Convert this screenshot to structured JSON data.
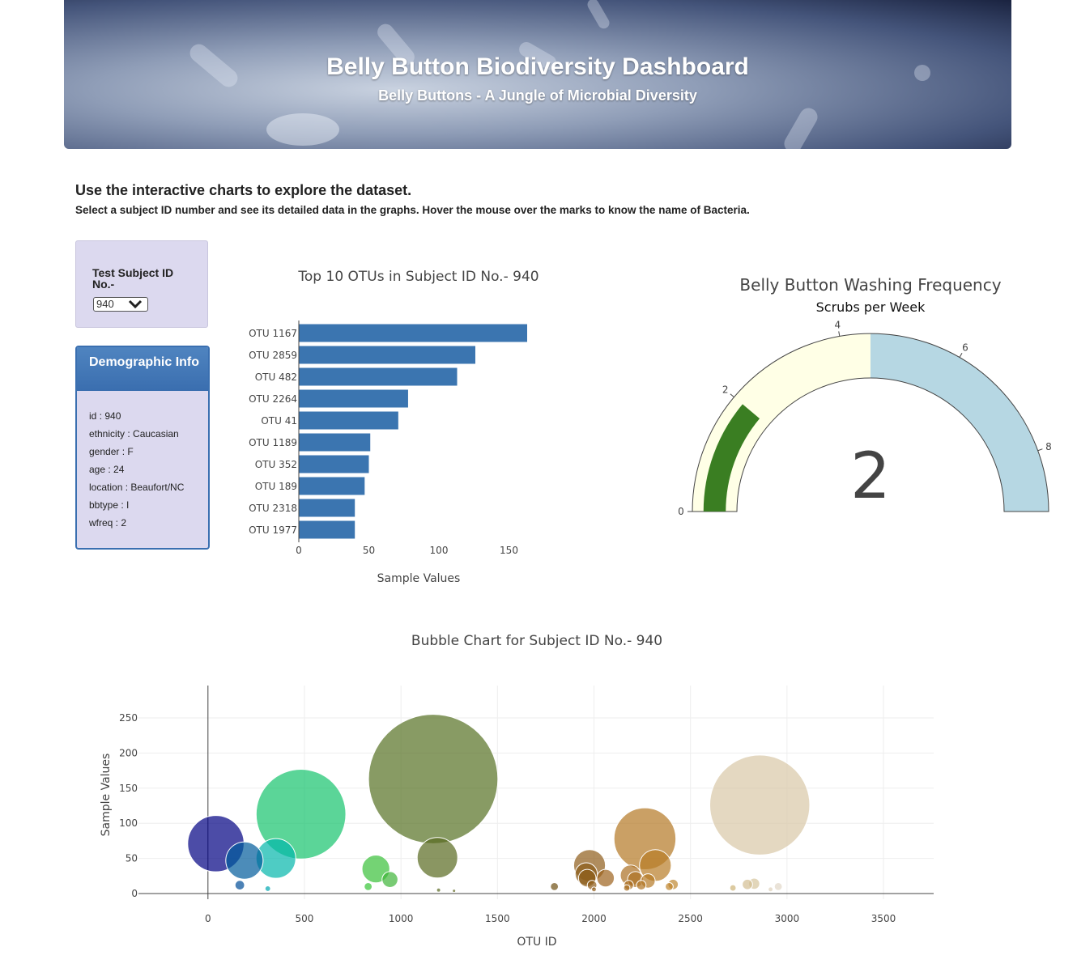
{
  "header": {
    "title": "Belly Button Biodiversity Dashboard",
    "subtitle": "Belly Buttons - A Jungle of Microbial Diversity"
  },
  "intro": {
    "heading": "Use the interactive charts to explore the dataset.",
    "text": "Select a subject ID number and see its detailed data in the graphs. Hover the mouse over the marks to know the name of Bacteria."
  },
  "selector": {
    "label": "Test Subject ID No.-",
    "value": "940"
  },
  "demographics": {
    "title": "Demographic Info",
    "items": [
      "id : 940",
      "ethnicity : Caucasian",
      "gender : F",
      "age : 24",
      "location : Beaufort/NC",
      "bbtype : I",
      "wfreq : 2"
    ]
  },
  "chart_data": [
    {
      "type": "bar",
      "orientation": "horizontal",
      "title": "Top 10 OTUs in Subject ID No.- 940",
      "xlabel": "Sample Values",
      "categories": [
        "OTU 1167",
        "OTU 2859",
        "OTU 482",
        "OTU 2264",
        "OTU 41",
        "OTU 1189",
        "OTU 352",
        "OTU 189",
        "OTU 2318",
        "OTU 1977"
      ],
      "values": [
        163,
        126,
        113,
        78,
        71,
        51,
        50,
        47,
        40,
        40
      ],
      "xlim": [
        0,
        163
      ],
      "xticks": [
        0,
        50,
        100,
        150
      ],
      "color": "#3b75b0"
    },
    {
      "type": "gauge",
      "title": "Belly Button Washing Frequency",
      "subtitle": "Scrubs per Week",
      "value": 2,
      "range": [
        0,
        9
      ],
      "ticks": [
        0,
        2,
        4,
        6,
        8
      ],
      "steps": [
        {
          "range": [
            0,
            4.5
          ],
          "color": "#ffffe6"
        },
        {
          "range": [
            4.5,
            9
          ],
          "color": "#b6d7e3"
        }
      ],
      "bar_color": "#3a7e22"
    },
    {
      "type": "scatter",
      "title": "Bubble Chart for Subject ID No.- 940",
      "xlabel": "OTU ID",
      "ylabel": "Sample Values",
      "xlim": [
        -360,
        3760
      ],
      "ylim": [
        -8,
        296
      ],
      "xticks": [
        0,
        500,
        1000,
        1500,
        2000,
        2500,
        3000,
        3500
      ],
      "yticks": [
        0,
        50,
        100,
        150,
        200,
        250
      ],
      "colorscale": "Earth",
      "points": [
        {
          "x": 41,
          "y": 71
        },
        {
          "x": 189,
          "y": 47
        },
        {
          "x": 352,
          "y": 50
        },
        {
          "x": 482,
          "y": 113
        },
        {
          "x": 1167,
          "y": 163
        },
        {
          "x": 1189,
          "y": 51
        },
        {
          "x": 1977,
          "y": 40
        },
        {
          "x": 2264,
          "y": 78
        },
        {
          "x": 2318,
          "y": 40
        },
        {
          "x": 2859,
          "y": 126
        },
        {
          "x": 870,
          "y": 35
        },
        {
          "x": 943,
          "y": 20
        },
        {
          "x": 1960,
          "y": 28
        },
        {
          "x": 2060,
          "y": 22
        },
        {
          "x": 2190,
          "y": 26
        },
        {
          "x": 2215,
          "y": 20
        },
        {
          "x": 2180,
          "y": 12
        },
        {
          "x": 1965,
          "y": 22
        },
        {
          "x": 165,
          "y": 12
        },
        {
          "x": 310,
          "y": 7
        },
        {
          "x": 830,
          "y": 10
        },
        {
          "x": 1795,
          "y": 10
        },
        {
          "x": 1990,
          "y": 12
        },
        {
          "x": 2245,
          "y": 12
        },
        {
          "x": 2410,
          "y": 13
        },
        {
          "x": 2795,
          "y": 13
        },
        {
          "x": 2955,
          "y": 10
        },
        {
          "x": 2830,
          "y": 14
        },
        {
          "x": 2720,
          "y": 8
        },
        {
          "x": 2390,
          "y": 10
        },
        {
          "x": 2280,
          "y": 18
        },
        {
          "x": 2170,
          "y": 8
        },
        {
          "x": 1195,
          "y": 5
        },
        {
          "x": 1275,
          "y": 4
        },
        {
          "x": 2000,
          "y": 6
        },
        {
          "x": 2915,
          "y": 6
        }
      ]
    }
  ]
}
